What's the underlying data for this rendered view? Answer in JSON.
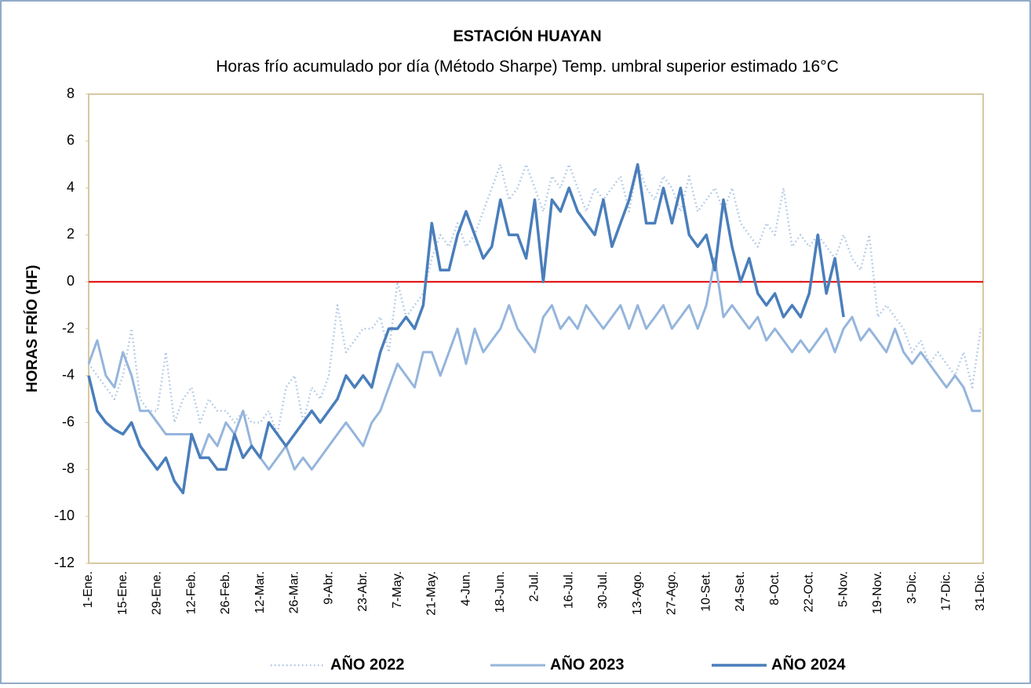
{
  "chart_data": {
    "type": "line",
    "title": "ESTACIÓN HUAYAN",
    "subtitle": "Horas frío acumulado por día (Método Sharpe) Temp. umbral superior estimado 16°C",
    "y_label": "HORAS  FRÍO (HF)",
    "categories": [
      "1-Ene.",
      null,
      null,
      null,
      "15-Ene.",
      null,
      null,
      null,
      "29-Ene.",
      null,
      null,
      null,
      "12-Feb.",
      null,
      null,
      null,
      "26-Feb.",
      null,
      null,
      null,
      "12-Mar.",
      null,
      null,
      null,
      "26-Mar.",
      null,
      null,
      null,
      "9-Abr.",
      null,
      null,
      null,
      "23-Abr.",
      null,
      null,
      null,
      "7-May.",
      null,
      null,
      null,
      "21-May.",
      null,
      null,
      null,
      "4-Jun.",
      null,
      null,
      null,
      "18-Jun.",
      null,
      null,
      null,
      "2-Jul.",
      null,
      null,
      null,
      "16-Jul.",
      null,
      null,
      null,
      "30-Jul.",
      null,
      null,
      null,
      "13-Ago.",
      null,
      null,
      null,
      "27-Ago.",
      null,
      null,
      null,
      "10-Set.",
      null,
      null,
      null,
      "24-Set.",
      null,
      null,
      null,
      "8-Oct.",
      null,
      null,
      null,
      "22-Oct.",
      null,
      null,
      null,
      "5-Nov.",
      null,
      null,
      null,
      "19-Nov.",
      null,
      null,
      null,
      "3-Dic.",
      null,
      null,
      null,
      "17-Dic.",
      null,
      null,
      null,
      "31-Dic."
    ],
    "series": [
      {
        "name": "AÑO 2022",
        "color": "#aac4e3",
        "style": "dotted",
        "values": [
          -3.5,
          -4,
          -4.5,
          -5,
          -4,
          -2,
          -5,
          -5.5,
          -5.5,
          -3,
          -6,
          -5,
          -4.5,
          -6,
          -5,
          -5.5,
          -5.5,
          -6,
          -5.5,
          -6,
          -6,
          -5.5,
          -6.5,
          -4.5,
          -4,
          -6,
          -4.5,
          -5,
          -4,
          -1,
          -3,
          -2.5,
          -2,
          -2,
          -1.5,
          -3,
          0,
          -1.5,
          -1,
          -0.5,
          1,
          2,
          1.5,
          2.5,
          1.5,
          2,
          3,
          4,
          5,
          3.5,
          4,
          5,
          4,
          3,
          4.5,
          4,
          5,
          4,
          3,
          4,
          3.5,
          4,
          4.5,
          3,
          5,
          4,
          3.5,
          4.5,
          4,
          3,
          4.5,
          3,
          3.5,
          4,
          3,
          4,
          2.5,
          2,
          1.5,
          2.5,
          2,
          4,
          1.5,
          2,
          1.5,
          2,
          1.5,
          1,
          2,
          1,
          0.5,
          2,
          -1.5,
          -1,
          -1.5,
          -2,
          -3,
          -2.5,
          -3.5,
          -3,
          -3.5,
          -4,
          -3,
          -4.5,
          -2
        ]
      },
      {
        "name": "AÑO 2023",
        "color": "#95b5dc",
        "style": "solid",
        "values": [
          -3.5,
          -2.5,
          -4,
          -4.5,
          -3,
          -4,
          -5.5,
          -5.5,
          -6,
          -6.5,
          -6.5,
          -6.5,
          -6.5,
          -7.5,
          -6.5,
          -7,
          -6,
          -6.5,
          -5.5,
          -7,
          -7.5,
          -8,
          -7.5,
          -7,
          -8,
          -7.5,
          -8,
          -7.5,
          -7,
          -6.5,
          -6,
          -6.5,
          -7,
          -6,
          -5.5,
          -4.5,
          -3.5,
          -4,
          -4.5,
          -3,
          -3,
          -4,
          -3,
          -2,
          -3.5,
          -2,
          -3,
          -2.5,
          -2,
          -1,
          -2,
          -2.5,
          -3,
          -1.5,
          -1,
          -2,
          -1.5,
          -2,
          -1,
          -1.5,
          -2,
          -1.5,
          -1,
          -2,
          -1,
          -2,
          -1.5,
          -1,
          -2,
          -1.5,
          -1,
          -2,
          -1,
          1,
          -1.5,
          -1,
          -1.5,
          -2,
          -1.5,
          -2.5,
          -2,
          -2.5,
          -3,
          -2.5,
          -3,
          -2.5,
          -2,
          -3,
          -2,
          -1.5,
          -2.5,
          -2,
          -2.5,
          -3,
          -2,
          -3,
          -3.5,
          -3,
          -3.5,
          -4,
          -4.5,
          -4,
          -4.5,
          -5.5,
          -5.5
        ]
      },
      {
        "name": "AÑO 2024",
        "color": "#4a7ebb",
        "style": "bold",
        "values": [
          -4,
          -5.5,
          -6,
          -6.3,
          -6.5,
          -6,
          -7,
          -7.5,
          -8,
          -7.5,
          -8.5,
          -9,
          -6.5,
          -7.5,
          -7.5,
          -8,
          -8,
          -6.5,
          -7.5,
          -7,
          -7.5,
          -6,
          -6.5,
          -7,
          -6.5,
          -6,
          -5.5,
          -6,
          -5.5,
          -5,
          -4,
          -4.5,
          -4,
          -4.5,
          -3,
          -2,
          -2,
          -1.5,
          -2,
          -1,
          2.5,
          0.5,
          0.5,
          2,
          3,
          2,
          1,
          1.5,
          3.5,
          2,
          2,
          1,
          3.5,
          0,
          3.5,
          3,
          4,
          3,
          2.5,
          2,
          3.5,
          1.5,
          2.5,
          3.5,
          5,
          2.5,
          2.5,
          4,
          2.5,
          4,
          2,
          1.5,
          2,
          0.5,
          3.5,
          1.5,
          0,
          1,
          -0.5,
          -1,
          -0.5,
          -1.5,
          -1,
          -1.5,
          -0.5,
          2,
          -0.5,
          1,
          -1.5,
          null,
          null,
          null,
          null,
          null,
          null,
          null,
          null,
          null,
          null,
          null,
          null,
          null,
          null,
          null,
          null
        ]
      }
    ],
    "ylim": [
      -12,
      8
    ],
    "yticks": [
      -12,
      -10,
      -8,
      -6,
      -4,
      -2,
      0,
      2,
      4,
      6,
      8
    ],
    "reference_line": {
      "value": 0,
      "color": "#e00000"
    },
    "legend": "bottom"
  }
}
